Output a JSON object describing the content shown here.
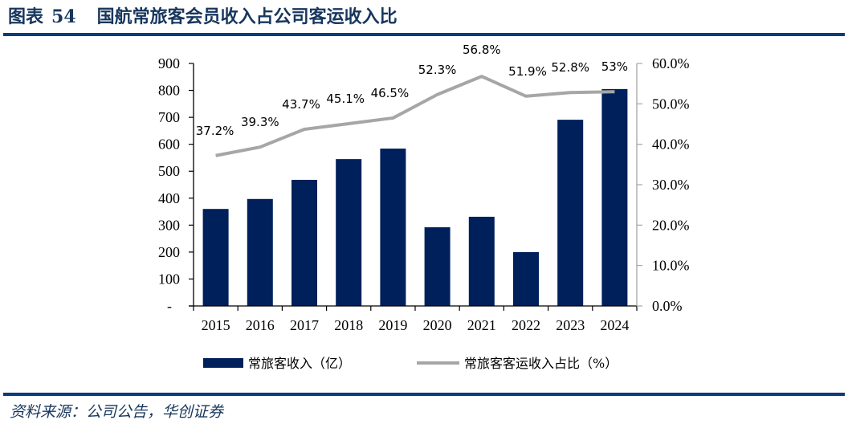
{
  "header": {
    "figure_label": "图表",
    "figure_number": "54",
    "title": "国航常旅客会员收入占公司客运收入比"
  },
  "footer": {
    "source": "资料来源：公司公告，华创证券"
  },
  "colors": {
    "bar": "#00205b",
    "line": "#a6a6a6",
    "rule": "#0d3a7a",
    "title": "#17365d"
  },
  "chart_data": {
    "type": "bar+line",
    "title": "国航常旅客会员收入占公司客运收入比",
    "categories": [
      "2015",
      "2016",
      "2017",
      "2018",
      "2019",
      "2020",
      "2021",
      "2022",
      "2023",
      "2024"
    ],
    "series": [
      {
        "name": "常旅客收入（亿）",
        "type": "bar",
        "axis": "left",
        "values": [
          360,
          397,
          468,
          545,
          584,
          292,
          331,
          200,
          691,
          805
        ]
      },
      {
        "name": "常旅客客运收入占比（%）",
        "type": "line",
        "axis": "right",
        "values": [
          37.2,
          39.3,
          43.7,
          45.1,
          46.5,
          52.3,
          56.8,
          51.9,
          52.8,
          53
        ],
        "labels": [
          "37.2%",
          "39.3%",
          "43.7%",
          "45.1%",
          "46.5%",
          "52.3%",
          "56.8%",
          "51.9%",
          "52.8%",
          "53%"
        ]
      }
    ],
    "y_left": {
      "range": [
        0,
        900
      ],
      "ticks": [
        0,
        100,
        200,
        300,
        400,
        500,
        600,
        700,
        800,
        900
      ],
      "tick_labels": [
        "-",
        "100",
        "200",
        "300",
        "400",
        "500",
        "600",
        "700",
        "800",
        "900"
      ]
    },
    "y_right": {
      "range": [
        0,
        60
      ],
      "ticks": [
        0,
        10,
        20,
        30,
        40,
        50,
        60
      ],
      "tick_labels": [
        "0.0%",
        "10.0%",
        "20.0%",
        "30.0%",
        "40.0%",
        "50.0%",
        "60.0%"
      ]
    },
    "xlabel": "",
    "grid": false,
    "legend_position": "bottom"
  }
}
